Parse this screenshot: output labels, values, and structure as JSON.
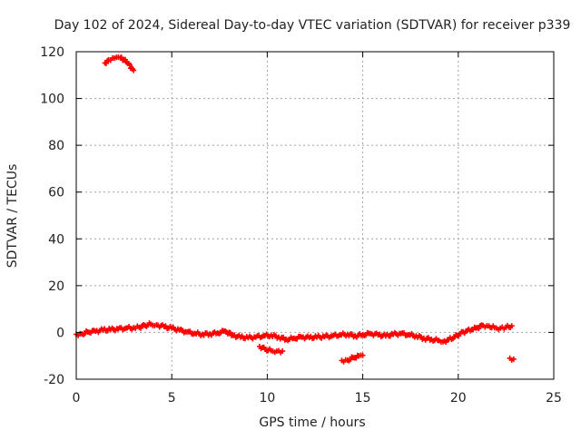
{
  "chart_data": {
    "type": "scatter",
    "title": "Day 102 of 2024, Sidereal Day-to-day VTEC variation (SDTVAR) for receiver p339",
    "xlabel": "GPS time / hours",
    "ylabel": "SDTVAR / TECUs",
    "xlim": [
      0,
      25
    ],
    "ylim": [
      -20,
      120
    ],
    "xticks": [
      "0",
      "5",
      "10",
      "15",
      "20",
      "25"
    ],
    "xtick_values": [
      0,
      5,
      10,
      15,
      20,
      25
    ],
    "yticks": [
      "-20",
      "0",
      "20",
      "40",
      "60",
      "80",
      "100",
      "120"
    ],
    "ytick_values": [
      -20,
      0,
      20,
      40,
      60,
      80,
      100,
      120
    ],
    "grid": true,
    "marker": "plus",
    "color": "#ff0000",
    "series": [
      {
        "name": "SDTVAR",
        "segments": [
          [
            [
              0.0,
              -0.8
            ],
            [
              0.3,
              -0.6
            ],
            [
              0.6,
              0.2
            ],
            [
              1.0,
              0.5
            ],
            [
              1.4,
              1.0
            ],
            [
              1.8,
              1.2
            ],
            [
              2.2,
              1.5
            ],
            [
              2.6,
              1.8
            ],
            [
              3.0,
              2.0
            ],
            [
              3.3,
              2.2
            ],
            [
              3.6,
              3.0
            ],
            [
              3.9,
              3.5
            ],
            [
              4.2,
              3.2
            ],
            [
              4.6,
              2.5
            ],
            [
              5.0,
              1.8
            ],
            [
              5.4,
              1.0
            ],
            [
              5.8,
              0.2
            ],
            [
              6.2,
              -0.4
            ],
            [
              6.6,
              -0.8
            ],
            [
              7.0,
              -0.6
            ],
            [
              7.4,
              -0.2
            ],
            [
              7.8,
              0.6
            ],
            [
              8.2,
              -1.2
            ],
            [
              8.6,
              -2.0
            ],
            [
              9.0,
              -2.3
            ],
            [
              9.4,
              -2.0
            ],
            [
              9.8,
              -1.5
            ],
            [
              10.2,
              -1.2
            ],
            [
              10.6,
              -2.0
            ],
            [
              11.0,
              -3.0
            ],
            [
              11.4,
              -2.5
            ],
            [
              11.8,
              -2.0
            ],
            [
              12.2,
              -2.2
            ],
            [
              12.6,
              -2.0
            ],
            [
              13.0,
              -1.8
            ],
            [
              13.4,
              -1.5
            ],
            [
              13.8,
              -1.0
            ],
            [
              14.2,
              -0.8
            ],
            [
              14.6,
              -1.5
            ],
            [
              15.0,
              -1.0
            ],
            [
              15.4,
              -0.5
            ],
            [
              15.8,
              -1.0
            ],
            [
              16.2,
              -1.5
            ],
            [
              16.6,
              -0.8
            ],
            [
              17.0,
              -0.5
            ],
            [
              17.4,
              -1.0
            ],
            [
              17.8,
              -1.5
            ],
            [
              18.2,
              -2.5
            ],
            [
              18.6,
              -3.0
            ],
            [
              19.0,
              -3.5
            ],
            [
              19.2,
              -4.0
            ],
            [
              19.5,
              -3.0
            ],
            [
              19.8,
              -2.0
            ],
            [
              20.1,
              -0.5
            ],
            [
              20.4,
              0.5
            ],
            [
              20.7,
              1.2
            ],
            [
              21.0,
              2.0
            ],
            [
              21.3,
              3.0
            ],
            [
              21.6,
              2.8
            ],
            [
              21.9,
              2.0
            ],
            [
              22.2,
              1.8
            ],
            [
              22.5,
              2.2
            ],
            [
              22.8,
              2.8
            ]
          ],
          [
            [
              1.5,
              115.2
            ],
            [
              1.7,
              116.5
            ],
            [
              1.9,
              117.3
            ],
            [
              2.1,
              117.6
            ],
            [
              2.3,
              117.4
            ],
            [
              2.5,
              116.5
            ],
            [
              2.7,
              115.0
            ],
            [
              2.9,
              113.0
            ],
            [
              3.0,
              112.0
            ]
          ],
          [
            [
              9.6,
              -6.0
            ],
            [
              9.9,
              -7.2
            ],
            [
              10.2,
              -7.8
            ],
            [
              10.5,
              -8.0
            ],
            [
              10.8,
              -8.0
            ]
          ],
          [
            [
              13.9,
              -12.0
            ],
            [
              14.2,
              -11.8
            ],
            [
              14.5,
              -10.8
            ],
            [
              14.8,
              -10.0
            ],
            [
              15.0,
              -9.8
            ]
          ],
          [
            [
              22.7,
              -11.0
            ],
            [
              22.9,
              -11.4
            ]
          ]
        ]
      }
    ]
  }
}
